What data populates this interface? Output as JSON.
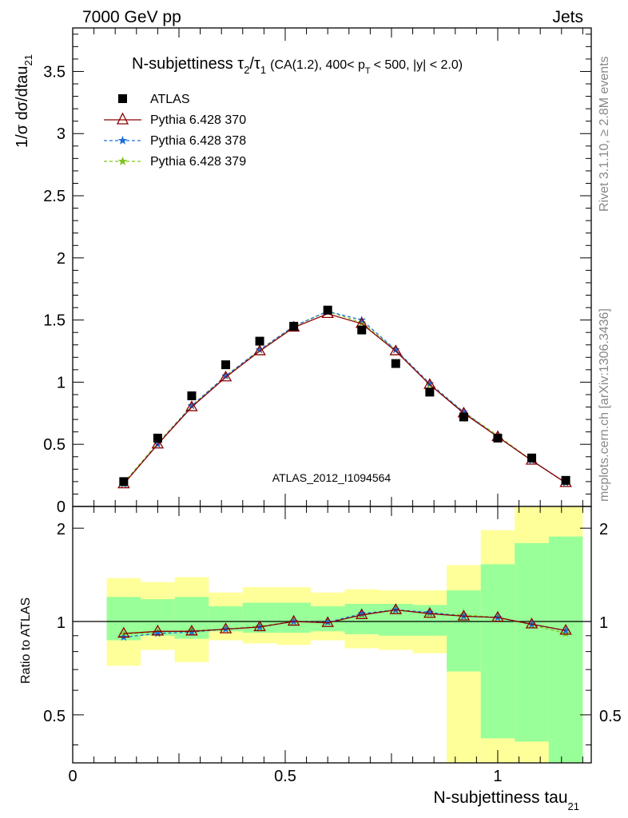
{
  "header": {
    "left": "7000 GeV pp",
    "right": "Jets"
  },
  "side": {
    "rivet": "Rivet 3.1.10, ≥ 2.8M events",
    "mcplots": "mcplots.cern.ch [arXiv:1306.3436]"
  },
  "colors": {
    "atlas": "#000000",
    "p370": "#8b0000",
    "p378": "#1e6fd9",
    "p379": "#7fc31c",
    "band_yellow": "#ffff99",
    "band_green": "#99ff99",
    "watermark": "#999999"
  },
  "chart_data": [
    {
      "type": "line",
      "title_main": "N-subjettiness τ",
      "title_tau2_sub": "2",
      "title_slash": "/τ",
      "title_tau1_sub": "1",
      "title_cuts_a": "(CA(1.2), 400< p",
      "title_pt_sub": "T",
      "title_cuts_b": "< 500, |y| < 2.0)",
      "ylabel": "1/σ dσ/dtau",
      "ylabel_sub": "21",
      "watermark": "ATLAS_2012_I1094564",
      "ylim": [
        0,
        3.85
      ],
      "xlim": [
        0,
        1.22
      ],
      "yticks": [
        "0",
        "0.5",
        "1",
        "1.5",
        "2",
        "2.5",
        "3",
        "3.5"
      ],
      "x": [
        0.12,
        0.2,
        0.28,
        0.36,
        0.44,
        0.52,
        0.6,
        0.68,
        0.76,
        0.84,
        0.92,
        1.0,
        1.08,
        1.16
      ],
      "legend": [
        "ATLAS",
        "Pythia 6.428 370",
        "Pythia 6.428 378",
        "Pythia 6.428 379"
      ],
      "series": [
        {
          "name": "ATLAS",
          "values": [
            0.2,
            0.55,
            0.89,
            1.14,
            1.33,
            1.45,
            1.58,
            1.42,
            1.15,
            0.92,
            0.72,
            0.55,
            0.39,
            0.21
          ]
        },
        {
          "name": "Pythia 6.428 370",
          "values": [
            0.18,
            0.5,
            0.8,
            1.04,
            1.25,
            1.44,
            1.55,
            1.47,
            1.25,
            0.98,
            0.75,
            0.56,
            0.37,
            0.19
          ]
        },
        {
          "name": "Pythia 6.428 378",
          "values": [
            0.18,
            0.5,
            0.81,
            1.05,
            1.26,
            1.45,
            1.57,
            1.5,
            1.26,
            0.99,
            0.76,
            0.56,
            0.37,
            0.19
          ]
        },
        {
          "name": "Pythia 6.428 379",
          "values": [
            0.19,
            0.51,
            0.81,
            1.05,
            1.26,
            1.45,
            1.57,
            1.48,
            1.26,
            0.98,
            0.76,
            0.57,
            0.37,
            0.19
          ]
        }
      ]
    },
    {
      "type": "line",
      "ylabel": "Ratio to ATLAS",
      "xlabel": "N-subjettiness tau",
      "xlabel_sub": "21",
      "ylim": [
        0.35,
        2.35
      ],
      "ylog": true,
      "xlim": [
        0,
        1.22
      ],
      "yticks": [
        "0.5",
        "1",
        "2"
      ],
      "xticks": [
        "0",
        "0.5",
        "1"
      ],
      "bin_edges": [
        0.08,
        0.16,
        0.24,
        0.32,
        0.4,
        0.48,
        0.56,
        0.64,
        0.72,
        0.8,
        0.88,
        0.96,
        1.04,
        1.12,
        1.2
      ],
      "band_yellow": [
        [
          0.72,
          1.38
        ],
        [
          0.81,
          1.34
        ],
        [
          0.74,
          1.39
        ],
        [
          0.87,
          1.24
        ],
        [
          0.85,
          1.29
        ],
        [
          0.84,
          1.29
        ],
        [
          0.87,
          1.24
        ],
        [
          0.82,
          1.27
        ],
        [
          0.81,
          1.26
        ],
        [
          0.79,
          1.26
        ],
        [
          0.35,
          1.52
        ],
        [
          0.35,
          1.97
        ],
        [
          0.35,
          2.35
        ],
        [
          0.35,
          2.35
        ]
      ],
      "band_green": [
        [
          0.87,
          1.2
        ],
        [
          0.9,
          1.18
        ],
        [
          0.88,
          1.2
        ],
        [
          0.93,
          1.12
        ],
        [
          0.92,
          1.15
        ],
        [
          0.92,
          1.15
        ],
        [
          0.93,
          1.12
        ],
        [
          0.91,
          1.14
        ],
        [
          0.9,
          1.14
        ],
        [
          0.9,
          1.13
        ],
        [
          0.69,
          1.26
        ],
        [
          0.42,
          1.53
        ],
        [
          0.41,
          1.79
        ],
        [
          0.35,
          1.88
        ]
      ],
      "series": [
        {
          "name": "Pythia 6.428 370",
          "values": [
            0.915,
            0.93,
            0.93,
            0.945,
            0.96,
            1.0,
            0.99,
            1.05,
            1.09,
            1.06,
            1.04,
            1.03,
            0.98,
            0.935
          ]
        },
        {
          "name": "Pythia 6.428 378",
          "values": [
            0.89,
            0.915,
            0.925,
            0.945,
            0.96,
            1.0,
            0.995,
            1.06,
            1.09,
            1.07,
            1.04,
            1.03,
            0.98,
            0.935
          ]
        },
        {
          "name": "Pythia 6.428 379",
          "values": [
            0.91,
            0.925,
            0.935,
            0.945,
            0.965,
            1.0,
            0.995,
            1.05,
            1.09,
            1.06,
            1.05,
            1.03,
            0.975,
            0.915
          ]
        }
      ]
    }
  ]
}
